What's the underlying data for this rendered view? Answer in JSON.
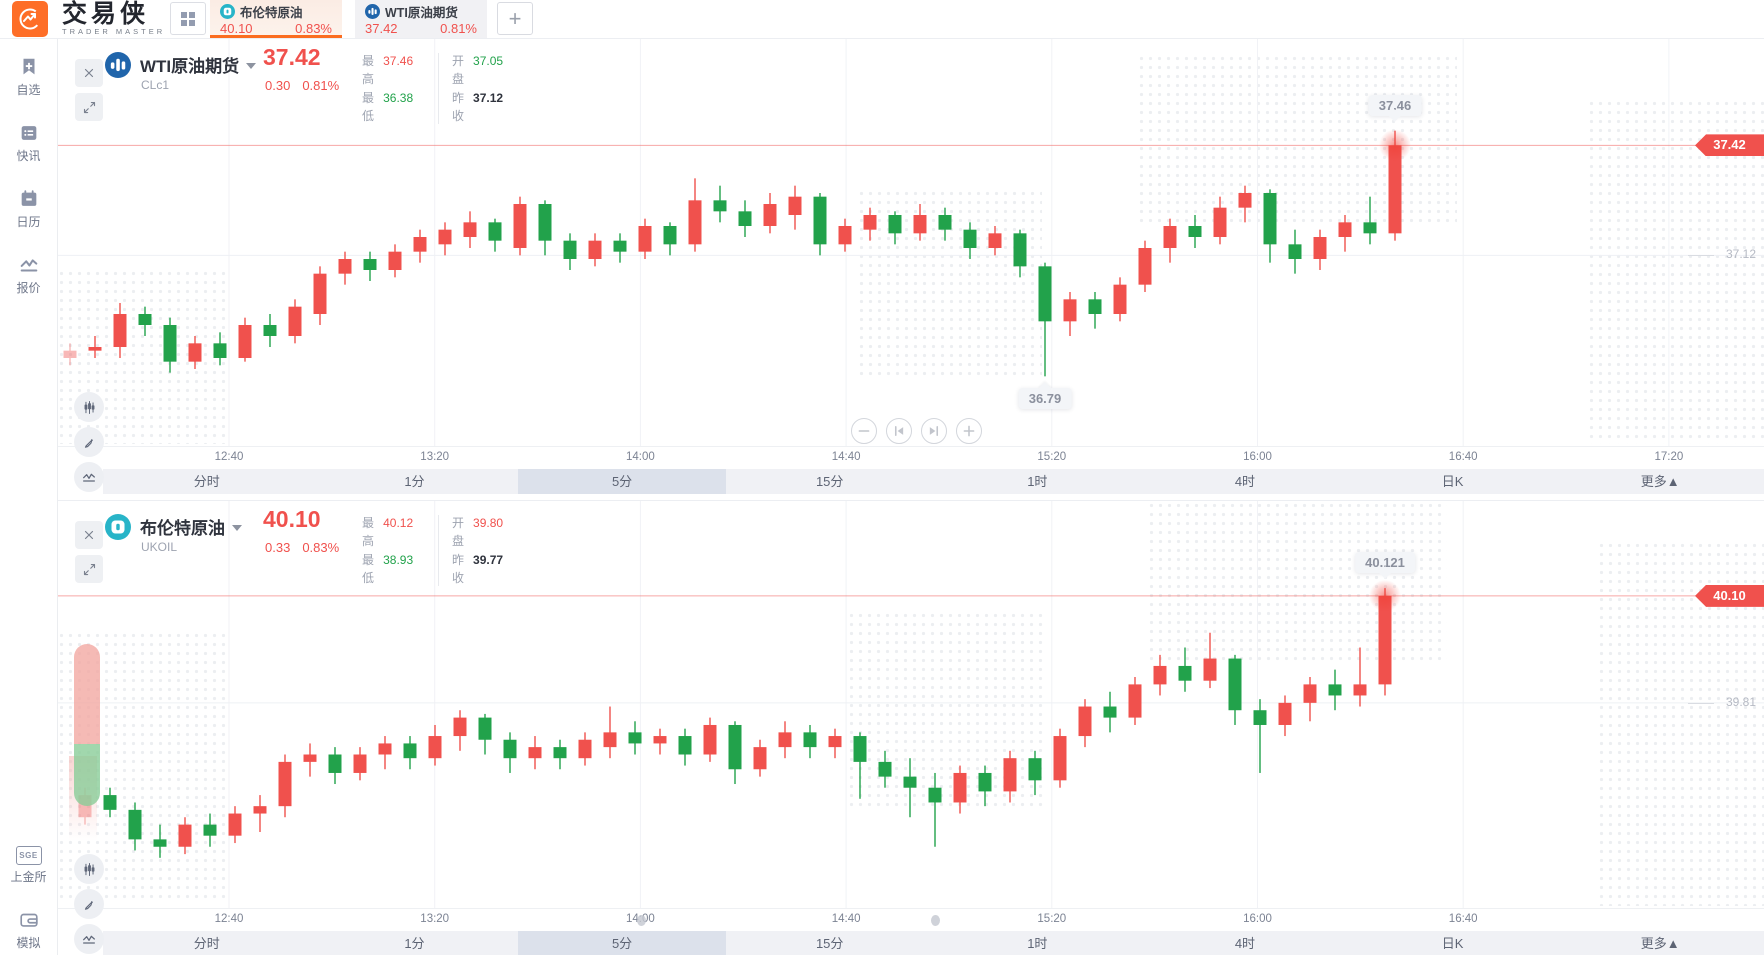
{
  "app": {
    "title": "交易侠",
    "subtitle": "TRADER MASTER"
  },
  "colors": {
    "up": "#f0514d",
    "down": "#22a24b",
    "accent": "#fb6d20"
  },
  "header": {
    "add_tab": "+",
    "quote_tabs": [
      {
        "name": "布伦特原油",
        "price": "40.10",
        "change_pct": "0.83%",
        "active": true,
        "icon": "brent-icon"
      },
      {
        "name": "WTI原油期货",
        "price": "37.42",
        "change_pct": "0.81%",
        "active": false,
        "icon": "wti-icon"
      }
    ]
  },
  "sidebar": {
    "top": [
      {
        "label": "自选",
        "icon": "bookmark-plus-icon"
      },
      {
        "label": "快讯",
        "icon": "news-list-icon"
      },
      {
        "label": "日历",
        "icon": "calendar-icon"
      },
      {
        "label": "报价",
        "icon": "trend-line-icon"
      }
    ],
    "bottom": [
      {
        "label": "上金所",
        "icon": "sge-icon",
        "badge": "SGE"
      },
      {
        "label": "模拟",
        "icon": "wallet-icon"
      }
    ]
  },
  "timeframes": {
    "options": [
      "分时",
      "1分",
      "5分",
      "15分",
      "1时",
      "4时",
      "日K",
      "更多▲"
    ],
    "selected": "5分"
  },
  "panels": [
    {
      "title": "WTI原油期货",
      "code": "CLc1",
      "price": "37.42",
      "change": "0.30",
      "change_pct": "0.81%",
      "stats": [
        {
          "label": "最高",
          "value": "37.46",
          "color": "up"
        },
        {
          "label": "最低",
          "value": "36.38",
          "color": "down"
        },
        {
          "label": "开盘",
          "value": "37.05",
          "color": "down"
        },
        {
          "label": "昨收",
          "value": "37.12",
          "color": "neutral"
        }
      ],
      "price_badge": "37.42",
      "icon": "wti-icon"
    },
    {
      "title": "布伦特原油",
      "code": "UKOIL",
      "price": "40.10",
      "change": "0.33",
      "change_pct": "0.83%",
      "stats": [
        {
          "label": "最高",
          "value": "40.12",
          "color": "up"
        },
        {
          "label": "最低",
          "value": "38.93",
          "color": "down"
        },
        {
          "label": "开盘",
          "value": "39.80",
          "color": "up"
        },
        {
          "label": "昨收",
          "value": "39.77",
          "color": "neutral"
        }
      ],
      "price_badge": "40.10",
      "icon": "brent-icon"
    }
  ],
  "chart_data": [
    {
      "type": "candlestick",
      "title": "WTI原油期货 CLc1 5分",
      "x_labels": [
        "12:40",
        "13:20",
        "14:00",
        "14:40",
        "15:20",
        "16:00",
        "16:40",
        "17:20"
      ],
      "ylim": [
        36.6,
        37.71
      ],
      "current_price": 37.42,
      "hline": {
        "value": 37.12,
        "label": "37.12"
      },
      "up_color": "#f0514d",
      "down_color": "#22a24b",
      "annotations": [
        {
          "text": "37.46",
          "candle": 53,
          "anchor": "high"
        },
        {
          "text": "36.79",
          "candle": 39,
          "anchor": "low"
        }
      ],
      "candles": [
        [
          36.84,
          36.88,
          36.82,
          36.86
        ],
        [
          36.86,
          36.9,
          36.84,
          36.87
        ],
        [
          36.87,
          36.99,
          36.84,
          36.96
        ],
        [
          36.96,
          36.98,
          36.9,
          36.93
        ],
        [
          36.93,
          36.95,
          36.8,
          36.83
        ],
        [
          36.83,
          36.9,
          36.81,
          36.88
        ],
        [
          36.88,
          36.91,
          36.82,
          36.84
        ],
        [
          36.84,
          36.95,
          36.83,
          36.93
        ],
        [
          36.93,
          36.96,
          36.87,
          36.9
        ],
        [
          36.9,
          37.0,
          36.88,
          36.98
        ],
        [
          36.96,
          37.09,
          36.93,
          37.07
        ],
        [
          37.07,
          37.13,
          37.04,
          37.11
        ],
        [
          37.11,
          37.13,
          37.05,
          37.08
        ],
        [
          37.08,
          37.15,
          37.06,
          37.13
        ],
        [
          37.13,
          37.19,
          37.1,
          37.17
        ],
        [
          37.15,
          37.21,
          37.12,
          37.19
        ],
        [
          37.17,
          37.24,
          37.14,
          37.21
        ],
        [
          37.21,
          37.22,
          37.13,
          37.16
        ],
        [
          37.14,
          37.28,
          37.12,
          37.26
        ],
        [
          37.26,
          37.27,
          37.12,
          37.16
        ],
        [
          37.16,
          37.18,
          37.08,
          37.11
        ],
        [
          37.11,
          37.18,
          37.09,
          37.16
        ],
        [
          37.16,
          37.18,
          37.1,
          37.13
        ],
        [
          37.13,
          37.22,
          37.11,
          37.2
        ],
        [
          37.2,
          37.21,
          37.12,
          37.15
        ],
        [
          37.15,
          37.33,
          37.13,
          37.27
        ],
        [
          37.27,
          37.31,
          37.21,
          37.24
        ],
        [
          37.24,
          37.27,
          37.17,
          37.2
        ],
        [
          37.2,
          37.29,
          37.18,
          37.26
        ],
        [
          37.23,
          37.31,
          37.19,
          37.28
        ],
        [
          37.28,
          37.29,
          37.12,
          37.15
        ],
        [
          37.15,
          37.22,
          37.13,
          37.2
        ],
        [
          37.19,
          37.25,
          37.16,
          37.23
        ],
        [
          37.23,
          37.24,
          37.15,
          37.18
        ],
        [
          37.18,
          37.26,
          37.16,
          37.23
        ],
        [
          37.23,
          37.25,
          37.16,
          37.19
        ],
        [
          37.19,
          37.21,
          37.11,
          37.14
        ],
        [
          37.14,
          37.2,
          37.12,
          37.18
        ],
        [
          37.18,
          37.19,
          37.06,
          37.09
        ],
        [
          37.09,
          37.1,
          36.79,
          36.94
        ],
        [
          36.94,
          37.02,
          36.9,
          37.0
        ],
        [
          37.0,
          37.02,
          36.92,
          36.96
        ],
        [
          36.96,
          37.06,
          36.94,
          37.04
        ],
        [
          37.04,
          37.16,
          37.02,
          37.14
        ],
        [
          37.14,
          37.22,
          37.1,
          37.2
        ],
        [
          37.2,
          37.23,
          37.14,
          37.17
        ],
        [
          37.17,
          37.28,
          37.15,
          37.25
        ],
        [
          37.25,
          37.31,
          37.21,
          37.29
        ],
        [
          37.29,
          37.3,
          37.1,
          37.15
        ],
        [
          37.15,
          37.19,
          37.07,
          37.11
        ],
        [
          37.11,
          37.19,
          37.08,
          37.17
        ],
        [
          37.17,
          37.23,
          37.13,
          37.21
        ],
        [
          37.21,
          37.28,
          37.15,
          37.18
        ],
        [
          37.18,
          37.46,
          37.16,
          37.42
        ]
      ]
    },
    {
      "type": "candlestick",
      "title": "布伦特原油 UKOIL 5分",
      "x_labels": [
        "12:40",
        "13:20",
        "14:00",
        "14:40",
        "15:20",
        "16:00",
        "16:40"
      ],
      "ylim": [
        39.254,
        40.357
      ],
      "current_price": 40.1,
      "hline": {
        "value": 39.81,
        "label": "39.81"
      },
      "up_color": "#f0514d",
      "down_color": "#22a24b",
      "annotations": [
        {
          "text": "40.121",
          "candle": 52,
          "anchor": "high"
        }
      ],
      "candles": [
        [
          39.5,
          39.58,
          39.48,
          39.56
        ],
        [
          39.56,
          39.58,
          39.5,
          39.52
        ],
        [
          39.52,
          39.54,
          39.41,
          39.44
        ],
        [
          39.44,
          39.48,
          39.39,
          39.42
        ],
        [
          39.42,
          39.5,
          39.4,
          39.48
        ],
        [
          39.48,
          39.51,
          39.42,
          39.45
        ],
        [
          39.45,
          39.53,
          39.43,
          39.51
        ],
        [
          39.51,
          39.56,
          39.46,
          39.53
        ],
        [
          39.53,
          39.67,
          39.5,
          39.65
        ],
        [
          39.65,
          39.7,
          39.61,
          39.67
        ],
        [
          39.67,
          39.69,
          39.59,
          39.62
        ],
        [
          39.62,
          39.69,
          39.6,
          39.67
        ],
        [
          39.67,
          39.72,
          39.63,
          39.7
        ],
        [
          39.7,
          39.72,
          39.63,
          39.66
        ],
        [
          39.66,
          39.75,
          39.64,
          39.72
        ],
        [
          39.72,
          39.79,
          39.68,
          39.77
        ],
        [
          39.77,
          39.78,
          39.67,
          39.71
        ],
        [
          39.71,
          39.73,
          39.62,
          39.66
        ],
        [
          39.66,
          39.72,
          39.63,
          39.69
        ],
        [
          39.69,
          39.71,
          39.63,
          39.66
        ],
        [
          39.66,
          39.73,
          39.64,
          39.71
        ],
        [
          39.69,
          39.8,
          39.66,
          39.73
        ],
        [
          39.73,
          39.76,
          39.67,
          39.7
        ],
        [
          39.7,
          39.74,
          39.67,
          39.72
        ],
        [
          39.72,
          39.74,
          39.64,
          39.67
        ],
        [
          39.67,
          39.77,
          39.65,
          39.75
        ],
        [
          39.75,
          39.76,
          39.59,
          39.63
        ],
        [
          39.63,
          39.71,
          39.61,
          39.69
        ],
        [
          39.69,
          39.76,
          39.66,
          39.73
        ],
        [
          39.73,
          39.75,
          39.66,
          39.69
        ],
        [
          39.69,
          39.74,
          39.66,
          39.72
        ],
        [
          39.72,
          39.73,
          39.55,
          39.65
        ],
        [
          39.65,
          39.68,
          39.58,
          39.61
        ],
        [
          39.61,
          39.66,
          39.5,
          39.58
        ],
        [
          39.58,
          39.62,
          39.42,
          39.54
        ],
        [
          39.54,
          39.64,
          39.51,
          39.62
        ],
        [
          39.62,
          39.64,
          39.53,
          39.57
        ],
        [
          39.57,
          39.68,
          39.54,
          39.66
        ],
        [
          39.66,
          39.68,
          39.56,
          39.6
        ],
        [
          39.6,
          39.74,
          39.58,
          39.72
        ],
        [
          39.72,
          39.82,
          39.69,
          39.8
        ],
        [
          39.8,
          39.84,
          39.73,
          39.77
        ],
        [
          39.77,
          39.88,
          39.75,
          39.86
        ],
        [
          39.86,
          39.94,
          39.83,
          39.91
        ],
        [
          39.91,
          39.96,
          39.84,
          39.87
        ],
        [
          39.87,
          40.0,
          39.85,
          39.93
        ],
        [
          39.93,
          39.94,
          39.75,
          39.79
        ],
        [
          39.79,
          39.82,
          39.62,
          39.75
        ],
        [
          39.75,
          39.83,
          39.72,
          39.81
        ],
        [
          39.81,
          39.88,
          39.76,
          39.86
        ],
        [
          39.86,
          39.9,
          39.79,
          39.83
        ],
        [
          39.83,
          39.96,
          39.8,
          39.86
        ],
        [
          39.86,
          40.121,
          39.83,
          40.1
        ]
      ]
    }
  ]
}
